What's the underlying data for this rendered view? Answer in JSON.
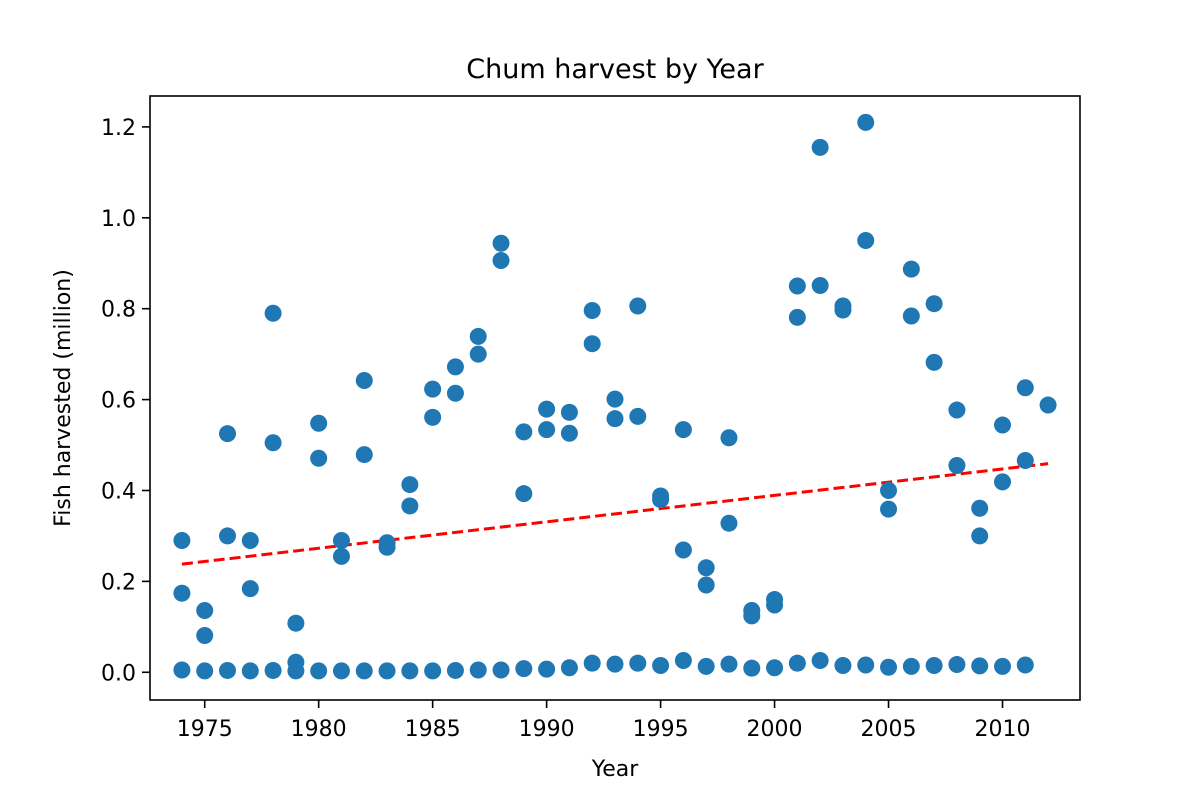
{
  "chart_data": {
    "type": "scatter",
    "title": "Chum harvest by Year",
    "xlabel": "Year",
    "ylabel": "Fish harvested (million)",
    "xlim": [
      1972.6,
      2013.4
    ],
    "ylim": [
      -0.061,
      1.268
    ],
    "xticks": [
      1975,
      1980,
      1985,
      1990,
      1995,
      2000,
      2005,
      2010
    ],
    "yticks": [
      0.0,
      0.2,
      0.4,
      0.6,
      0.8,
      1.0,
      1.2
    ],
    "ytick_labels": [
      "0.0",
      "0.2",
      "0.4",
      "0.6",
      "0.8",
      "1.0",
      "1.2"
    ],
    "grid": false,
    "colors": {
      "points": "#1f77b4",
      "trend": "#ff0000",
      "axes": "#000000",
      "background": "#ffffff"
    },
    "series": [
      {
        "values": [
          [
            1974,
            0.29
          ],
          [
            1974,
            0.174
          ],
          [
            1974,
            0.005
          ],
          [
            1975,
            0.136
          ],
          [
            1975,
            0.081
          ],
          [
            1975,
            0.003
          ],
          [
            1976,
            0.525
          ],
          [
            1976,
            0.3
          ],
          [
            1976,
            0.004
          ],
          [
            1977,
            0.29
          ],
          [
            1977,
            0.184
          ],
          [
            1977,
            0.003
          ],
          [
            1978,
            0.79
          ],
          [
            1978,
            0.505
          ],
          [
            1978,
            0.004
          ],
          [
            1979,
            0.108
          ],
          [
            1979,
            0.022
          ],
          [
            1979,
            0.003
          ],
          [
            1980,
            0.548
          ],
          [
            1980,
            0.471
          ],
          [
            1980,
            0.003
          ],
          [
            1981,
            0.29
          ],
          [
            1981,
            0.255
          ],
          [
            1981,
            0.003
          ],
          [
            1982,
            0.642
          ],
          [
            1982,
            0.479
          ],
          [
            1982,
            0.003
          ],
          [
            1983,
            0.285
          ],
          [
            1983,
            0.275
          ],
          [
            1983,
            0.003
          ],
          [
            1984,
            0.413
          ],
          [
            1984,
            0.366
          ],
          [
            1984,
            0.003
          ],
          [
            1985,
            0.623
          ],
          [
            1985,
            0.561
          ],
          [
            1985,
            0.003
          ],
          [
            1986,
            0.672
          ],
          [
            1986,
            0.614
          ],
          [
            1986,
            0.004
          ],
          [
            1987,
            0.739
          ],
          [
            1987,
            0.7
          ],
          [
            1987,
            0.005
          ],
          [
            1988,
            0.944
          ],
          [
            1988,
            0.906
          ],
          [
            1988,
            0.005
          ],
          [
            1989,
            0.529
          ],
          [
            1989,
            0.393
          ],
          [
            1989,
            0.008
          ],
          [
            1990,
            0.579
          ],
          [
            1990,
            0.534
          ],
          [
            1990,
            0.007
          ],
          [
            1991,
            0.572
          ],
          [
            1991,
            0.526
          ],
          [
            1991,
            0.01
          ],
          [
            1992,
            0.796
          ],
          [
            1992,
            0.723
          ],
          [
            1992,
            0.02
          ],
          [
            1993,
            0.601
          ],
          [
            1993,
            0.558
          ],
          [
            1993,
            0.018
          ],
          [
            1994,
            0.806
          ],
          [
            1994,
            0.563
          ],
          [
            1994,
            0.02
          ],
          [
            1995,
            0.388
          ],
          [
            1995,
            0.38
          ],
          [
            1995,
            0.015
          ],
          [
            1996,
            0.534
          ],
          [
            1996,
            0.269
          ],
          [
            1996,
            0.026
          ],
          [
            1997,
            0.23
          ],
          [
            1997,
            0.192
          ],
          [
            1997,
            0.013
          ],
          [
            1998,
            0.516
          ],
          [
            1998,
            0.328
          ],
          [
            1998,
            0.018
          ],
          [
            1999,
            0.136
          ],
          [
            1999,
            0.124
          ],
          [
            1999,
            0.009
          ],
          [
            2000,
            0.16
          ],
          [
            2000,
            0.148
          ],
          [
            2000,
            0.01
          ],
          [
            2001,
            0.85
          ],
          [
            2001,
            0.781
          ],
          [
            2001,
            0.02
          ],
          [
            2002,
            1.155
          ],
          [
            2002,
            0.851
          ],
          [
            2002,
            0.026
          ],
          [
            2003,
            0.806
          ],
          [
            2003,
            0.797
          ],
          [
            2003,
            0.015
          ],
          [
            2004,
            1.21
          ],
          [
            2004,
            0.95
          ],
          [
            2004,
            0.016
          ],
          [
            2005,
            0.4
          ],
          [
            2005,
            0.359
          ],
          [
            2005,
            0.011
          ],
          [
            2006,
            0.887
          ],
          [
            2006,
            0.784
          ],
          [
            2006,
            0.013
          ],
          [
            2007,
            0.811
          ],
          [
            2007,
            0.682
          ],
          [
            2007,
            0.015
          ],
          [
            2008,
            0.577
          ],
          [
            2008,
            0.455
          ],
          [
            2008,
            0.017
          ],
          [
            2009,
            0.361
          ],
          [
            2009,
            0.3
          ],
          [
            2009,
            0.014
          ],
          [
            2010,
            0.544
          ],
          [
            2010,
            0.419
          ],
          [
            2010,
            0.013
          ],
          [
            2011,
            0.626
          ],
          [
            2011,
            0.466
          ],
          [
            2011,
            0.016
          ],
          [
            2012,
            0.588
          ]
        ]
      }
    ],
    "trendline": {
      "style": "dashed",
      "points": [
        [
          1974,
          0.238
        ],
        [
          2012,
          0.459
        ]
      ]
    }
  }
}
